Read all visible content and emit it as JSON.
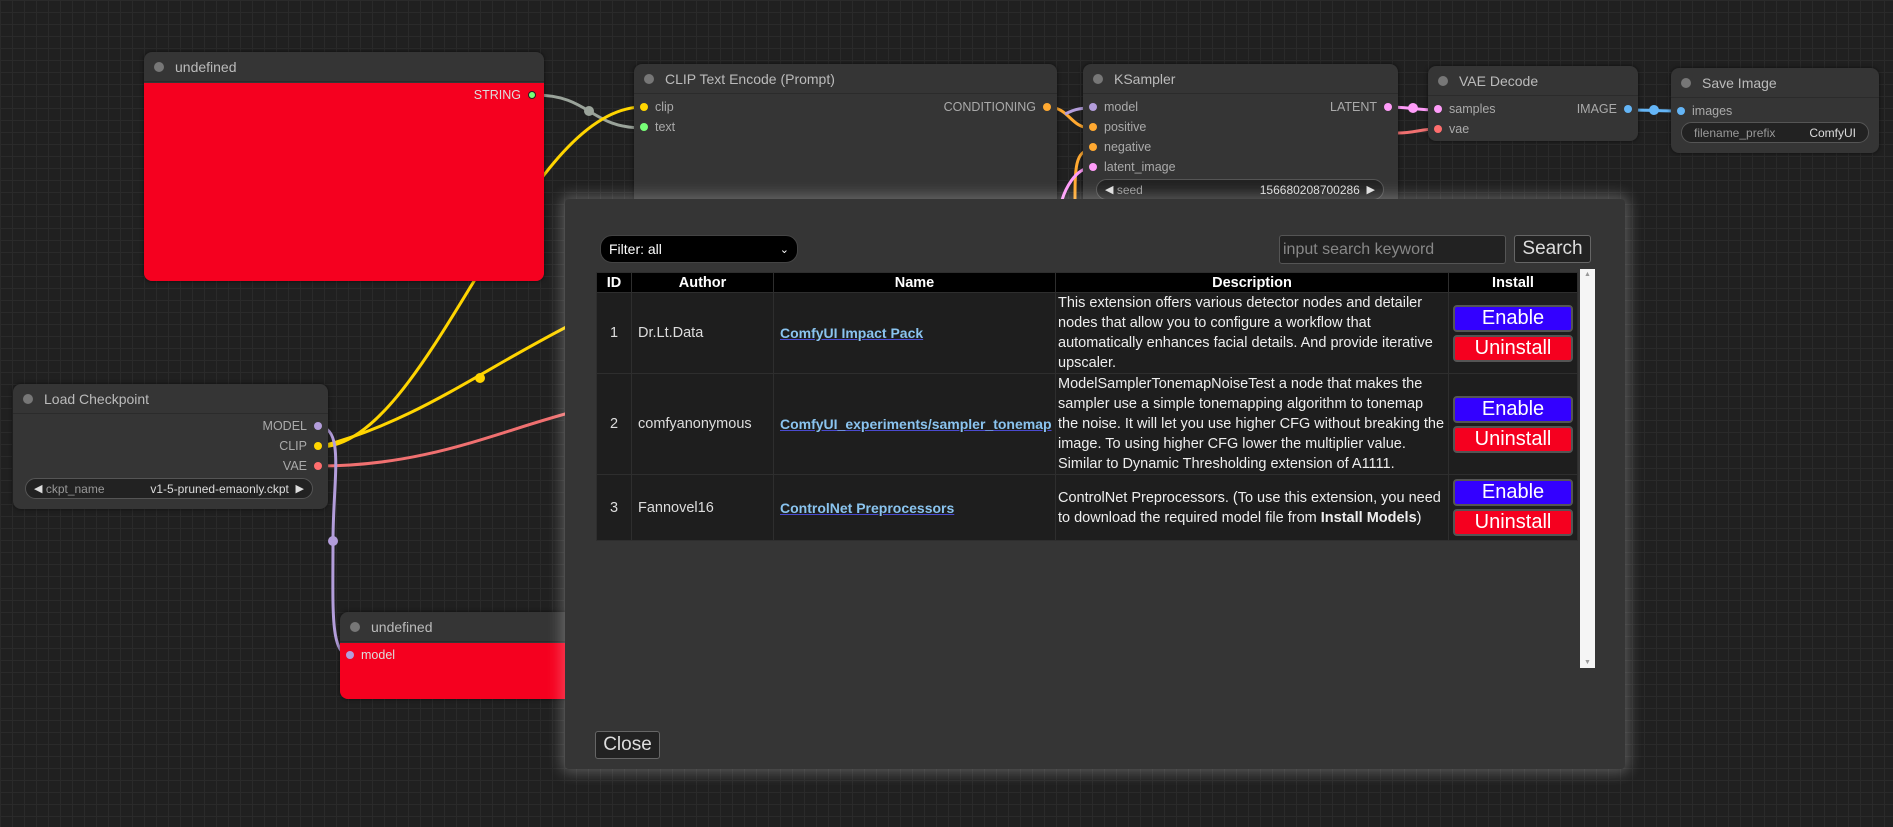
{
  "nodes": {
    "undefined_top": {
      "title": "undefined",
      "outputs": [
        "STRING"
      ]
    },
    "clip_text_encode": {
      "title": "CLIP Text Encode (Prompt)",
      "inputs": [
        "clip",
        "text"
      ],
      "outputs": [
        "CONDITIONING"
      ]
    },
    "ksampler": {
      "title": "KSampler",
      "inputs": [
        "model",
        "positive",
        "negative",
        "latent_image"
      ],
      "outputs": [
        "LATENT"
      ],
      "seed_label": "seed",
      "seed_value": "156680208700286"
    },
    "vae_decode": {
      "title": "VAE Decode",
      "inputs": [
        "samples",
        "vae"
      ],
      "outputs": [
        "IMAGE"
      ]
    },
    "save_image": {
      "title": "Save Image",
      "inputs": [
        "images"
      ],
      "filename_prefix_label": "filename_prefix",
      "filename_prefix_value": "ComfyUI"
    },
    "load_checkpoint": {
      "title": "Load Checkpoint",
      "outputs": [
        "MODEL",
        "CLIP",
        "VAE"
      ],
      "ckpt_label": "ckpt_name",
      "ckpt_value": "v1-5-pruned-emaonly.ckpt"
    },
    "undefined_bottom": {
      "title": "undefined",
      "inputs": [
        "model"
      ]
    }
  },
  "colors": {
    "error_node": "#f5001f",
    "enable": "#3300ff",
    "uninstall": "#f5001f",
    "clip": "#ffd500",
    "model": "#b39ddb",
    "vae": "#ff6e6e",
    "latent": "#ff9cf9",
    "image": "#64b5f6",
    "conditioning": "#ffa931",
    "string": "#77ff77"
  },
  "modal": {
    "filter": "Filter: all",
    "search_placeholder": "input search keyword",
    "search_label": "Search",
    "close_label": "Close",
    "columns": [
      "ID",
      "Author",
      "Name",
      "Description",
      "Install"
    ],
    "rows": [
      {
        "id": "1",
        "author": "Dr.Lt.Data",
        "name": "ComfyUI Impact Pack",
        "description": "This extension offers various detector nodes and detailer nodes that allow you to configure a workflow that automatically enhances facial details. And provide iterative upscaler.",
        "enable": "Enable",
        "uninstall": "Uninstall"
      },
      {
        "id": "2",
        "author": "comfyanonymous",
        "name": "ComfyUI_experiments/sampler_tonemap",
        "description": "ModelSamplerTonemapNoiseTest a node that makes the sampler use a simple tonemapping algorithm to tonemap the noise. It will let you use higher CFG without breaking the image. To using higher CFG lower the multiplier value. Similar to Dynamic Thresholding extension of A1111.",
        "enable": "Enable",
        "uninstall": "Uninstall"
      },
      {
        "id": "3",
        "author": "Fannovel16",
        "name": "ControlNet Preprocessors",
        "description_pre": "ControlNet Preprocessors. (To use this extension, you need to download the required model file from ",
        "description_bold": "Install Models",
        "description_post": ")",
        "enable": "Enable",
        "uninstall": "Uninstall"
      }
    ]
  }
}
